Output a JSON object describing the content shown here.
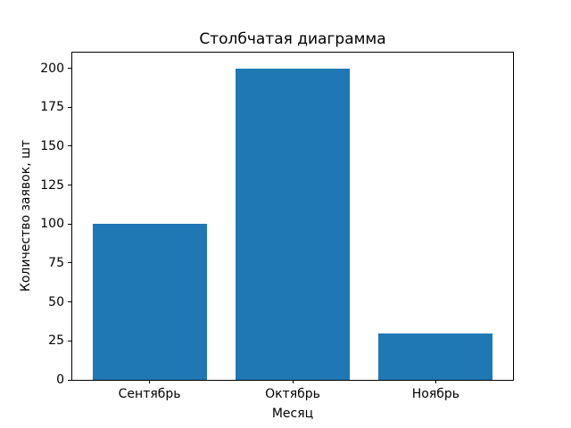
{
  "chart_data": {
    "type": "bar",
    "title": "Столбчатая диаграмма",
    "xlabel": "Месяц",
    "ylabel": "Количество заявок, шт",
    "categories": [
      "Сентябрь",
      "Октябрь",
      "Ноябрь"
    ],
    "values": [
      100,
      200,
      30
    ],
    "yticks": [
      0,
      25,
      50,
      75,
      100,
      125,
      150,
      175,
      200
    ],
    "ylim": [
      0,
      210
    ],
    "bar_color": "#1f77b4",
    "bar_width_fraction": 0.8,
    "x_margin_fraction": 0.05,
    "frame_color": "#000000",
    "background_color": "#ffffff",
    "legend": "none",
    "grid": "off"
  }
}
